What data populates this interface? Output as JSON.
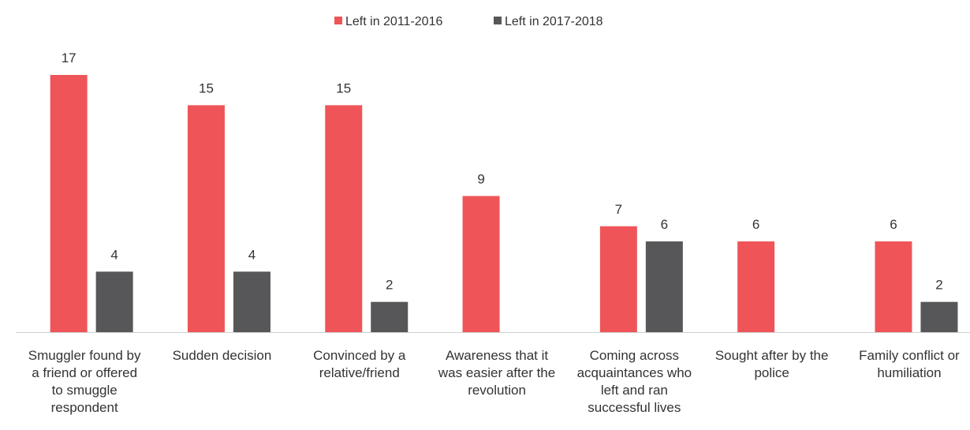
{
  "chart_data": {
    "type": "bar",
    "categories": [
      [
        "Smuggler found by",
        "a friend or offered",
        "to smuggle",
        "respondent"
      ],
      [
        "Sudden decision"
      ],
      [
        "Convinced by a",
        "relative/friend"
      ],
      [
        "Awareness that it",
        "was easier after the",
        "revolution"
      ],
      [
        "Coming across",
        "acquaintances who",
        "left and ran",
        "successful lives"
      ],
      [
        "Sought after by the",
        "police"
      ],
      [
        "Family conflict or",
        "humiliation"
      ]
    ],
    "series": [
      {
        "name": "Left in 2011-2016",
        "color": "#EF5558",
        "values": [
          17,
          15,
          15,
          9,
          7,
          6,
          6
        ]
      },
      {
        "name": "Left in 2017-2018",
        "color": "#575759",
        "values": [
          4,
          4,
          2,
          null,
          6,
          null,
          2
        ]
      }
    ],
    "ylim": [
      0,
      17
    ],
    "legend_position": "top-center",
    "grid": false,
    "data_labels": true
  }
}
